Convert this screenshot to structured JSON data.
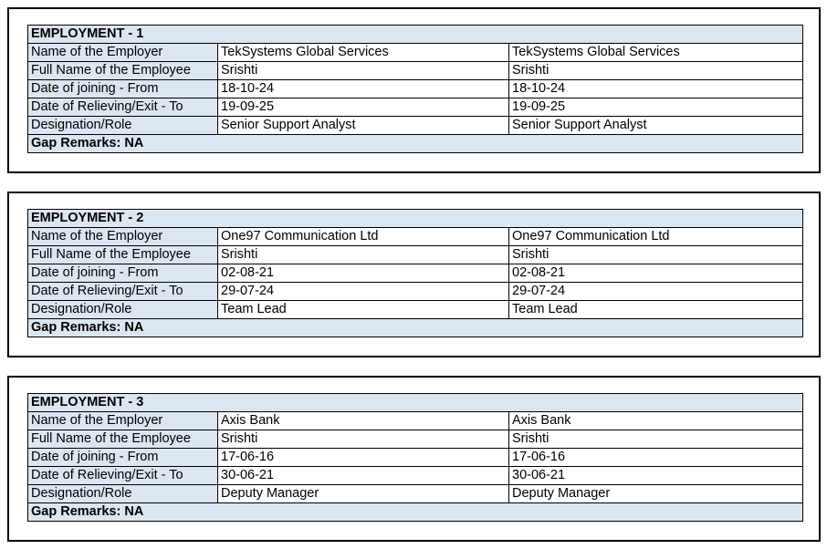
{
  "colors": {
    "fill": "#dce6f1",
    "border": "#000000",
    "text": "#000000",
    "page_bg": "#ffffff"
  },
  "employments": [
    {
      "title": "EMPLOYMENT - 1",
      "rows": [
        {
          "label": "Name of the Employer",
          "value1": "TekSystems Global Services",
          "value2": "TekSystems Global Services"
        },
        {
          "label": "Full Name of the Employee",
          "value1": "Srishti",
          "value2": "Srishti"
        },
        {
          "label": "Date of joining - From",
          "value1": "18-10-24",
          "value2": "18-10-24"
        },
        {
          "label": "Date of Relieving/Exit - To",
          "value1": "19-09-25",
          "value2": "19-09-25"
        },
        {
          "label": "Designation/Role",
          "value1": "Senior Support Analyst",
          "value2": "Senior Support Analyst"
        }
      ],
      "gap_remarks": "Gap Remarks: NA"
    },
    {
      "title": "EMPLOYMENT - 2",
      "rows": [
        {
          "label": "Name of the Employer",
          "value1": "One97 Communication Ltd",
          "value2": "One97 Communication Ltd"
        },
        {
          "label": "Full Name of the Employee",
          "value1": "Srishti",
          "value2": "Srishti"
        },
        {
          "label": "Date of joining - From",
          "value1": "02-08-21",
          "value2": "02-08-21"
        },
        {
          "label": "Date of Relieving/Exit - To",
          "value1": "29-07-24",
          "value2": "29-07-24"
        },
        {
          "label": "Designation/Role",
          "value1": "Team Lead",
          "value2": "Team Lead"
        }
      ],
      "gap_remarks": "Gap Remarks: NA"
    },
    {
      "title": "EMPLOYMENT - 3",
      "rows": [
        {
          "label": "Name of the Employer",
          "value1": "Axis Bank",
          "value2": "Axis Bank"
        },
        {
          "label": "Full Name of the Employee",
          "value1": "Srishti",
          "value2": "Srishti"
        },
        {
          "label": "Date of joining - From",
          "value1": "17-06-16",
          "value2": "17-06-16"
        },
        {
          "label": "Date of Relieving/Exit - To",
          "value1": "30-06-21",
          "value2": "30-06-21"
        },
        {
          "label": "Designation/Role",
          "value1": "Deputy Manager",
          "value2": "Deputy Manager"
        }
      ],
      "gap_remarks": "Gap Remarks: NA"
    }
  ]
}
